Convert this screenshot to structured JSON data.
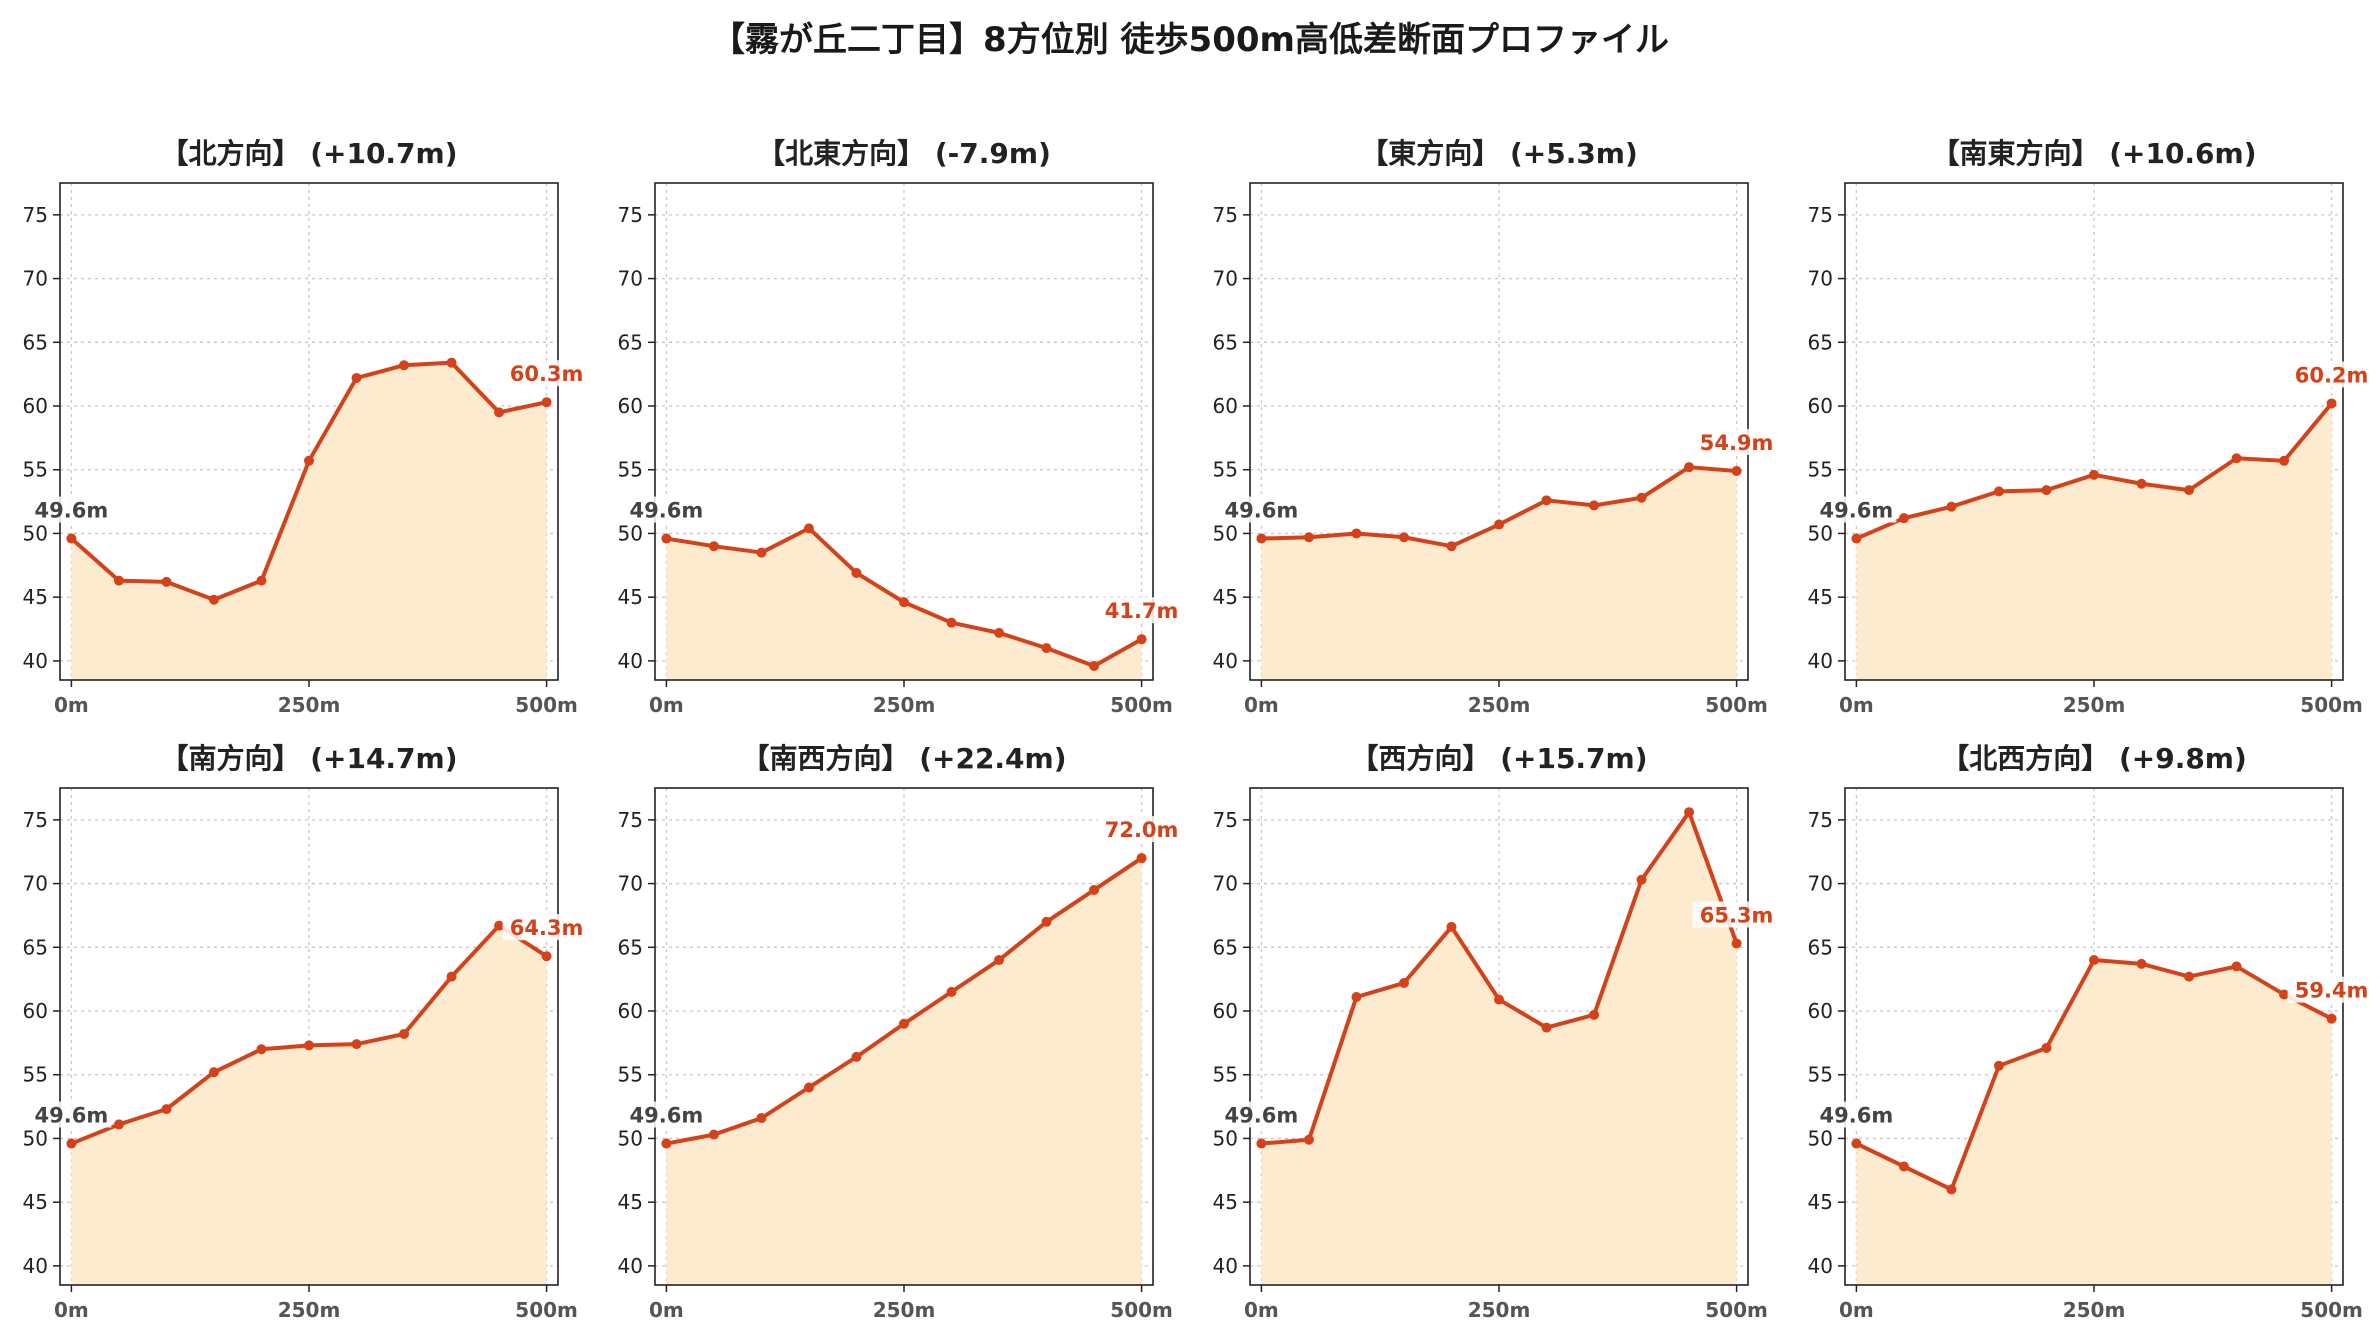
{
  "title": "【霧が丘二丁目】8方位別 徒歩500m高低差断面プロファイル",
  "colors": {
    "line": "#d5421a",
    "fill": "#fdebcf",
    "start_label": "#444444",
    "end_label": "#d5421a"
  },
  "chart_data": [
    {
      "type": "area",
      "title": "【北方向】 (+10.7m)",
      "x": [
        0,
        50,
        100,
        150,
        200,
        250,
        300,
        350,
        400,
        450,
        500
      ],
      "y": [
        49.6,
        46.3,
        46.2,
        44.8,
        46.3,
        55.7,
        62.2,
        63.2,
        63.4,
        59.5,
        60.3
      ],
      "xticks": [
        "0m",
        "250m",
        "500m"
      ],
      "yticks": [
        40,
        45,
        50,
        55,
        60,
        65,
        70,
        75
      ],
      "ylim": [
        38.5,
        77.5
      ],
      "xlim": [
        -12,
        512
      ],
      "start_label": "49.6m",
      "end_label": "60.3m",
      "grid": true
    },
    {
      "type": "area",
      "title": "【北東方向】 (-7.9m)",
      "x": [
        0,
        50,
        100,
        150,
        200,
        250,
        300,
        350,
        400,
        450,
        500
      ],
      "y": [
        49.6,
        49.0,
        48.5,
        50.4,
        46.9,
        44.6,
        43.0,
        42.2,
        41.0,
        39.6,
        41.7
      ],
      "xticks": [
        "0m",
        "250m",
        "500m"
      ],
      "yticks": [
        40,
        45,
        50,
        55,
        60,
        65,
        70,
        75
      ],
      "ylim": [
        38.5,
        77.5
      ],
      "xlim": [
        -12,
        512
      ],
      "start_label": "49.6m",
      "end_label": "41.7m",
      "grid": true
    },
    {
      "type": "area",
      "title": "【東方向】 (+5.3m)",
      "x": [
        0,
        50,
        100,
        150,
        200,
        250,
        300,
        350,
        400,
        450,
        500
      ],
      "y": [
        49.6,
        49.7,
        50.0,
        49.7,
        49.0,
        50.7,
        52.6,
        52.2,
        52.8,
        55.2,
        54.9
      ],
      "xticks": [
        "0m",
        "250m",
        "500m"
      ],
      "yticks": [
        40,
        45,
        50,
        55,
        60,
        65,
        70,
        75
      ],
      "ylim": [
        38.5,
        77.5
      ],
      "xlim": [
        -12,
        512
      ],
      "start_label": "49.6m",
      "end_label": "54.9m",
      "grid": true
    },
    {
      "type": "area",
      "title": "【南東方向】 (+10.6m)",
      "x": [
        0,
        50,
        100,
        150,
        200,
        250,
        300,
        350,
        400,
        450,
        500
      ],
      "y": [
        49.6,
        51.2,
        52.1,
        53.3,
        53.4,
        54.6,
        53.9,
        53.4,
        55.9,
        55.7,
        60.2
      ],
      "xticks": [
        "0m",
        "250m",
        "500m"
      ],
      "yticks": [
        40,
        45,
        50,
        55,
        60,
        65,
        70,
        75
      ],
      "ylim": [
        38.5,
        77.5
      ],
      "xlim": [
        -12,
        512
      ],
      "start_label": "49.6m",
      "end_label": "60.2m",
      "grid": true
    },
    {
      "type": "area",
      "title": "【南方向】 (+14.7m)",
      "x": [
        0,
        50,
        100,
        150,
        200,
        250,
        300,
        350,
        400,
        450,
        500
      ],
      "y": [
        49.6,
        51.1,
        52.3,
        55.2,
        57.0,
        57.3,
        57.4,
        58.2,
        62.7,
        66.7,
        64.3
      ],
      "xticks": [
        "0m",
        "250m",
        "500m"
      ],
      "yticks": [
        40,
        45,
        50,
        55,
        60,
        65,
        70,
        75
      ],
      "ylim": [
        38.5,
        77.5
      ],
      "xlim": [
        -12,
        512
      ],
      "start_label": "49.6m",
      "end_label": "64.3m",
      "grid": true
    },
    {
      "type": "area",
      "title": "【南西方向】 (+22.4m)",
      "x": [
        0,
        50,
        100,
        150,
        200,
        250,
        300,
        350,
        400,
        450,
        500
      ],
      "y": [
        49.6,
        50.3,
        51.6,
        54.0,
        56.4,
        59.0,
        61.5,
        64.0,
        67.0,
        69.5,
        72.0
      ],
      "xticks": [
        "0m",
        "250m",
        "500m"
      ],
      "yticks": [
        40,
        45,
        50,
        55,
        60,
        65,
        70,
        75
      ],
      "ylim": [
        38.5,
        77.5
      ],
      "xlim": [
        -12,
        512
      ],
      "start_label": "49.6m",
      "end_label": "72.0m",
      "grid": true
    },
    {
      "type": "area",
      "title": "【西方向】 (+15.7m)",
      "x": [
        0,
        50,
        100,
        150,
        200,
        250,
        300,
        350,
        400,
        450,
        500
      ],
      "y": [
        49.6,
        49.9,
        61.1,
        62.2,
        66.6,
        60.9,
        58.7,
        59.7,
        70.3,
        75.6,
        65.3
      ],
      "xticks": [
        "0m",
        "250m",
        "500m"
      ],
      "yticks": [
        40,
        45,
        50,
        55,
        60,
        65,
        70,
        75
      ],
      "ylim": [
        38.5,
        77.5
      ],
      "xlim": [
        -12,
        512
      ],
      "start_label": "49.6m",
      "end_label": "65.3m",
      "grid": true
    },
    {
      "type": "area",
      "title": "【北西方向】 (+9.8m)",
      "x": [
        0,
        50,
        100,
        150,
        200,
        250,
        300,
        350,
        400,
        450,
        500
      ],
      "y": [
        49.6,
        47.8,
        46.0,
        55.7,
        57.1,
        64.0,
        63.7,
        62.7,
        63.5,
        61.3,
        59.4
      ],
      "xticks": [
        "0m",
        "250m",
        "500m"
      ],
      "yticks": [
        40,
        45,
        50,
        55,
        60,
        65,
        70,
        75
      ],
      "ylim": [
        38.5,
        77.5
      ],
      "xlim": [
        -12,
        512
      ],
      "start_label": "49.6m",
      "end_label": "59.4m",
      "grid": true
    }
  ]
}
